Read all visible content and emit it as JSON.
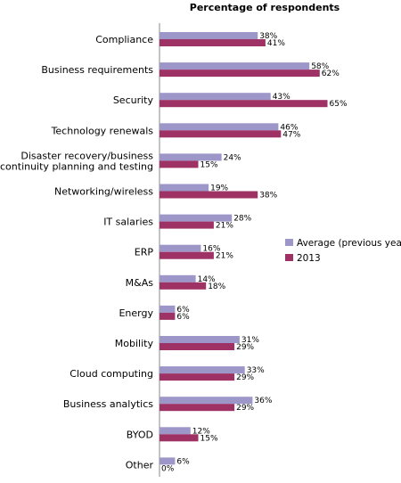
{
  "chart_data": {
    "type": "bar",
    "orientation": "horizontal",
    "title": "Percentage of respondents",
    "categories": [
      "Compliance",
      "Business requirements",
      "Security",
      "Technology renewals",
      "Disaster recovery/business\ncontinuity planning and testing",
      "Networking/wireless",
      "IT salaries",
      "ERP",
      "M&As",
      "Energy",
      "Mobility",
      "Cloud computing",
      "Business analytics",
      "BYOD",
      "Other"
    ],
    "series": [
      {
        "name": "Average (previous years)",
        "color": "#9d97c9",
        "values": [
          38,
          58,
          43,
          46,
          24,
          19,
          28,
          16,
          14,
          6,
          31,
          33,
          36,
          12,
          6
        ],
        "labels": [
          "38%",
          "58%",
          "43%",
          "46%",
          "24%",
          "19%",
          "28%",
          "16%",
          "14%",
          "6%",
          "31%",
          "33%",
          "36%",
          "12%",
          "6%"
        ]
      },
      {
        "name": "2013",
        "color": "#9e3265",
        "values": [
          41,
          62,
          65,
          47,
          15,
          38,
          21,
          21,
          18,
          6,
          29,
          29,
          29,
          15,
          0
        ],
        "labels": [
          "41%",
          "62%",
          "65%",
          "47%",
          "15%",
          "38%",
          "21%",
          "21%",
          "18%",
          "6%",
          "29%",
          "29%",
          "29%",
          "15%",
          "0%"
        ]
      }
    ],
    "legend_position": "right",
    "grid": false
  }
}
